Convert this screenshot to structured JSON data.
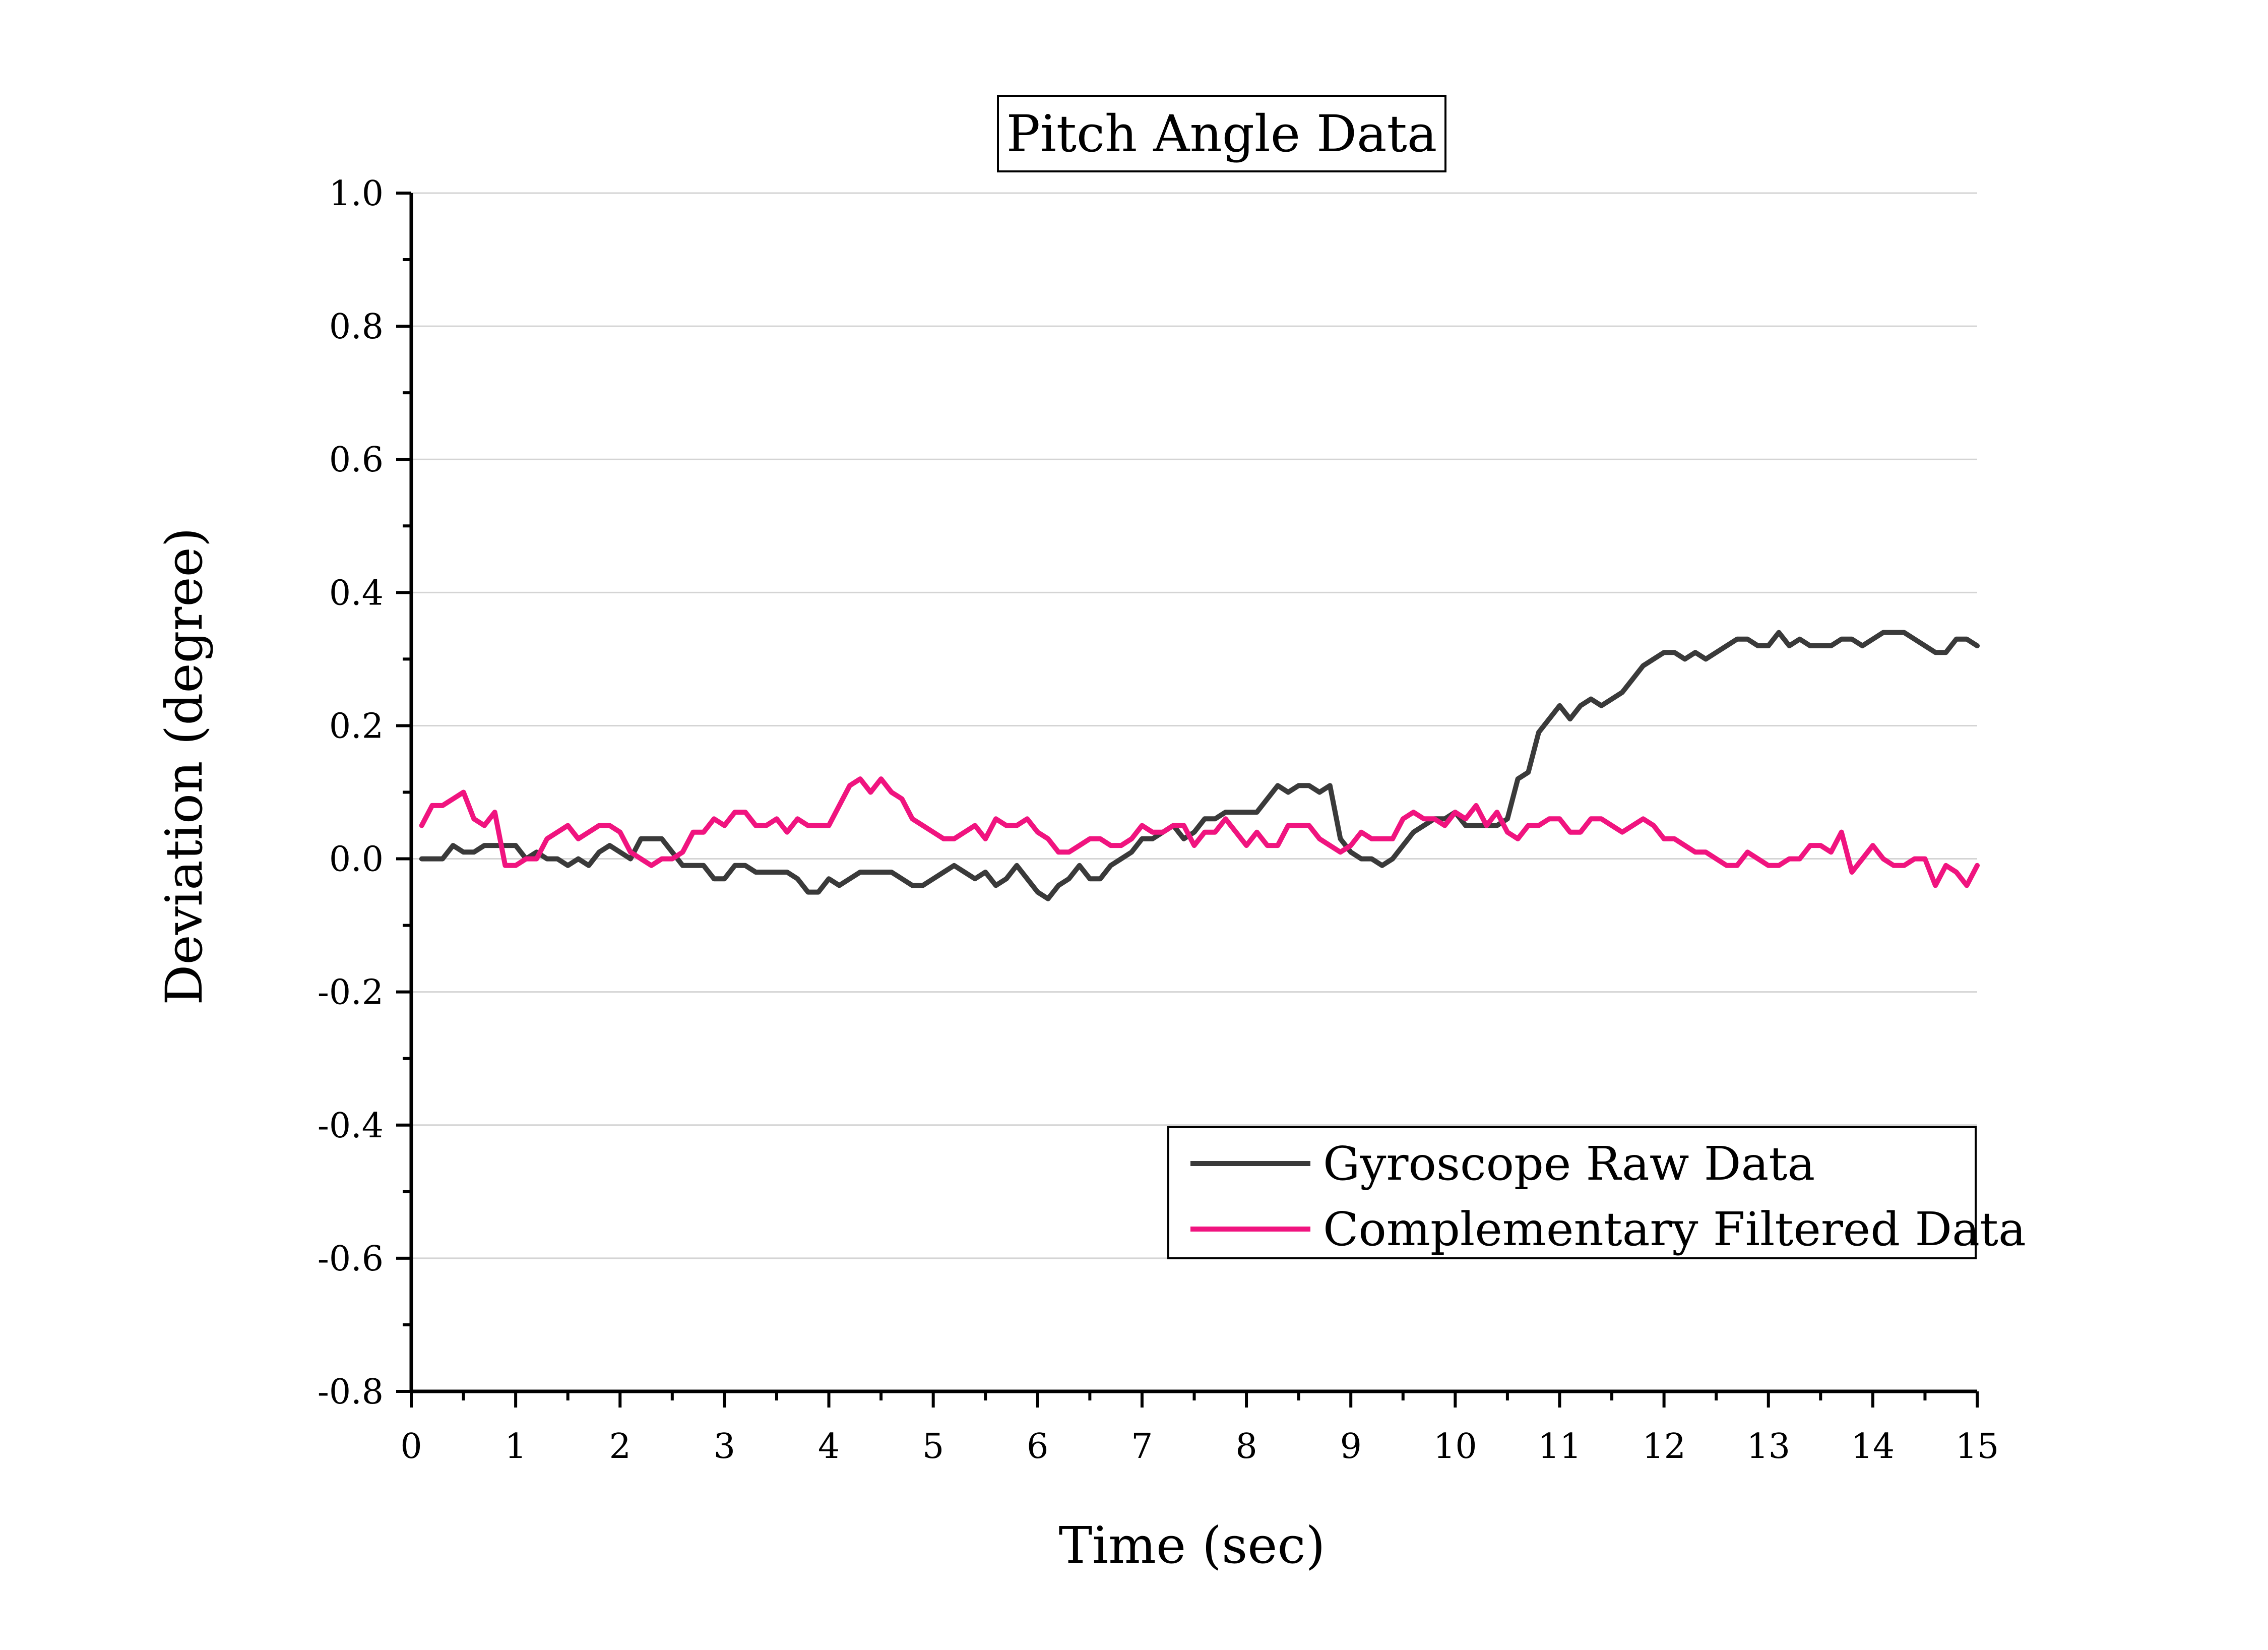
{
  "chart_data": {
    "type": "line",
    "title": "Pitch Angle Data",
    "xlabel": "Time (sec)",
    "ylabel": "Deviation (degree)",
    "xlim": [
      0,
      15
    ],
    "ylim": [
      -0.8,
      1.0
    ],
    "x_ticks": [
      0,
      1,
      2,
      3,
      4,
      5,
      6,
      7,
      8,
      9,
      10,
      11,
      12,
      13,
      14,
      15
    ],
    "x_tick_labels": [
      "0",
      "1",
      "2",
      "3",
      "4",
      "5",
      "6",
      "7",
      "8",
      "9",
      "10",
      "11",
      "12",
      "13",
      "14",
      "15"
    ],
    "y_ticks": [
      -0.8,
      -0.6,
      -0.4,
      -0.2,
      0.0,
      0.2,
      0.4,
      0.6,
      0.8,
      1.0
    ],
    "y_tick_labels": [
      "-0.8",
      "-0.6",
      "-0.4",
      "-0.2",
      "0.0",
      "0.2",
      "0.4",
      "0.6",
      "0.8",
      "1.0"
    ],
    "grid": true,
    "legend_position": "bottom-right",
    "series": [
      {
        "name": "Gyroscope Raw Data",
        "color": "#3a3a3a",
        "x": [
          0.1,
          0.2,
          0.3,
          0.4,
          0.5,
          0.6,
          0.7,
          0.8,
          0.9,
          1.0,
          1.1,
          1.2,
          1.3,
          1.4,
          1.5,
          1.6,
          1.7,
          1.8,
          1.9,
          2.0,
          2.1,
          2.2,
          2.3,
          2.4,
          2.5,
          2.6,
          2.7,
          2.8,
          2.9,
          3.0,
          3.1,
          3.2,
          3.3,
          3.4,
          3.5,
          3.6,
          3.7,
          3.8,
          3.9,
          4.0,
          4.1,
          4.2,
          4.3,
          4.4,
          4.5,
          4.6,
          4.7,
          4.8,
          4.9,
          5.0,
          5.1,
          5.2,
          5.3,
          5.4,
          5.5,
          5.6,
          5.7,
          5.8,
          5.9,
          6.0,
          6.1,
          6.2,
          6.3,
          6.4,
          6.5,
          6.6,
          6.7,
          6.8,
          6.9,
          7.0,
          7.1,
          7.2,
          7.3,
          7.4,
          7.5,
          7.6,
          7.7,
          7.8,
          7.9,
          8.0,
          8.1,
          8.2,
          8.3,
          8.4,
          8.5,
          8.6,
          8.7,
          8.8,
          8.9,
          9.0,
          9.1,
          9.2,
          9.3,
          9.4,
          9.5,
          9.6,
          9.7,
          9.8,
          9.9,
          10.0,
          10.1,
          10.2,
          10.3,
          10.4,
          10.5,
          10.6,
          10.7,
          10.8,
          10.9,
          11.0,
          11.1,
          11.2,
          11.3,
          11.4,
          11.5,
          11.6,
          11.7,
          11.8,
          11.9,
          12.0,
          12.1,
          12.2,
          12.3,
          12.4,
          12.5,
          12.6,
          12.7,
          12.8,
          12.9,
          13.0,
          13.1,
          13.2,
          13.3,
          13.4,
          13.5,
          13.6,
          13.7,
          13.8,
          13.9,
          14.0,
          14.1,
          14.2,
          14.3,
          14.4,
          14.5,
          14.6,
          14.7,
          14.8,
          14.9,
          15.0
        ],
        "values": [
          0.0,
          0.0,
          0.0,
          0.02,
          0.01,
          0.01,
          0.02,
          0.02,
          0.02,
          0.02,
          0.0,
          0.01,
          0.0,
          0.0,
          -0.01,
          0.0,
          -0.01,
          0.01,
          0.02,
          0.01,
          0.0,
          0.03,
          0.03,
          0.03,
          0.01,
          -0.01,
          -0.01,
          -0.01,
          -0.03,
          -0.03,
          -0.01,
          -0.01,
          -0.02,
          -0.02,
          -0.02,
          -0.02,
          -0.03,
          -0.05,
          -0.05,
          -0.03,
          -0.04,
          -0.03,
          -0.02,
          -0.02,
          -0.02,
          -0.02,
          -0.03,
          -0.04,
          -0.04,
          -0.03,
          -0.02,
          -0.01,
          -0.02,
          -0.03,
          -0.02,
          -0.04,
          -0.03,
          -0.01,
          -0.03,
          -0.05,
          -0.06,
          -0.04,
          -0.03,
          -0.01,
          -0.03,
          -0.03,
          -0.01,
          0.0,
          0.01,
          0.03,
          0.03,
          0.04,
          0.05,
          0.03,
          0.04,
          0.06,
          0.06,
          0.07,
          0.07,
          0.07,
          0.07,
          0.09,
          0.11,
          0.1,
          0.11,
          0.11,
          0.1,
          0.11,
          0.03,
          0.01,
          0.0,
          0.0,
          -0.01,
          0.0,
          0.02,
          0.04,
          0.05,
          0.06,
          0.06,
          0.07,
          0.05,
          0.05,
          0.05,
          0.05,
          0.06,
          0.12,
          0.13,
          0.19,
          0.21,
          0.23,
          0.21,
          0.23,
          0.24,
          0.23,
          0.24,
          0.25,
          0.27,
          0.29,
          0.3,
          0.31,
          0.31,
          0.3,
          0.31,
          0.3,
          0.31,
          0.32,
          0.33,
          0.33,
          0.32,
          0.32,
          0.34,
          0.32,
          0.33,
          0.32,
          0.32,
          0.32,
          0.33,
          0.33,
          0.32,
          0.33,
          0.34,
          0.34,
          0.34,
          0.33,
          0.32,
          0.31,
          0.31,
          0.33,
          0.33,
          0.32
        ]
      },
      {
        "name": "Complementary Filtered Data",
        "color": "#f0147f",
        "x": [
          0.1,
          0.2,
          0.3,
          0.4,
          0.5,
          0.6,
          0.7,
          0.8,
          0.9,
          1.0,
          1.1,
          1.2,
          1.3,
          1.4,
          1.5,
          1.6,
          1.7,
          1.8,
          1.9,
          2.0,
          2.1,
          2.2,
          2.3,
          2.4,
          2.5,
          2.6,
          2.7,
          2.8,
          2.9,
          3.0,
          3.1,
          3.2,
          3.3,
          3.4,
          3.5,
          3.6,
          3.7,
          3.8,
          3.9,
          4.0,
          4.1,
          4.2,
          4.3,
          4.4,
          4.5,
          4.6,
          4.7,
          4.8,
          4.9,
          5.0,
          5.1,
          5.2,
          5.3,
          5.4,
          5.5,
          5.6,
          5.7,
          5.8,
          5.9,
          6.0,
          6.1,
          6.2,
          6.3,
          6.4,
          6.5,
          6.6,
          6.7,
          6.8,
          6.9,
          7.0,
          7.1,
          7.2,
          7.3,
          7.4,
          7.5,
          7.6,
          7.7,
          7.8,
          7.9,
          8.0,
          8.1,
          8.2,
          8.3,
          8.4,
          8.5,
          8.6,
          8.7,
          8.8,
          8.9,
          9.0,
          9.1,
          9.2,
          9.3,
          9.4,
          9.5,
          9.6,
          9.7,
          9.8,
          9.9,
          10.0,
          10.1,
          10.2,
          10.3,
          10.4,
          10.5,
          10.6,
          10.7,
          10.8,
          10.9,
          11.0,
          11.1,
          11.2,
          11.3,
          11.4,
          11.5,
          11.6,
          11.7,
          11.8,
          11.9,
          12.0,
          12.1,
          12.2,
          12.3,
          12.4,
          12.5,
          12.6,
          12.7,
          12.8,
          12.9,
          13.0,
          13.1,
          13.2,
          13.3,
          13.4,
          13.5,
          13.6,
          13.7,
          13.8,
          13.9,
          14.0,
          14.1,
          14.2,
          14.3,
          14.4,
          14.5,
          14.6,
          14.7,
          14.8,
          14.9,
          15.0
        ],
        "values": [
          0.05,
          0.08,
          0.08,
          0.09,
          0.1,
          0.06,
          0.05,
          0.07,
          -0.01,
          -0.01,
          0.0,
          0.0,
          0.03,
          0.04,
          0.05,
          0.03,
          0.04,
          0.05,
          0.05,
          0.04,
          0.01,
          0.0,
          -0.01,
          0.0,
          0.0,
          0.01,
          0.04,
          0.04,
          0.06,
          0.05,
          0.07,
          0.07,
          0.05,
          0.05,
          0.06,
          0.04,
          0.06,
          0.05,
          0.05,
          0.05,
          0.08,
          0.11,
          0.12,
          0.1,
          0.12,
          0.1,
          0.09,
          0.06,
          0.05,
          0.04,
          0.03,
          0.03,
          0.04,
          0.05,
          0.03,
          0.06,
          0.05,
          0.05,
          0.06,
          0.04,
          0.03,
          0.01,
          0.01,
          0.02,
          0.03,
          0.03,
          0.02,
          0.02,
          0.03,
          0.05,
          0.04,
          0.04,
          0.05,
          0.05,
          0.02,
          0.04,
          0.04,
          0.06,
          0.04,
          0.02,
          0.04,
          0.02,
          0.02,
          0.05,
          0.05,
          0.05,
          0.03,
          0.02,
          0.01,
          0.02,
          0.04,
          0.03,
          0.03,
          0.03,
          0.06,
          0.07,
          0.06,
          0.06,
          0.05,
          0.07,
          0.06,
          0.08,
          0.05,
          0.07,
          0.04,
          0.03,
          0.05,
          0.05,
          0.06,
          0.06,
          0.04,
          0.04,
          0.06,
          0.06,
          0.05,
          0.04,
          0.05,
          0.06,
          0.05,
          0.03,
          0.03,
          0.02,
          0.01,
          0.01,
          0.0,
          -0.01,
          -0.01,
          0.01,
          0.0,
          -0.01,
          -0.01,
          0.0,
          0.0,
          0.02,
          0.02,
          0.01,
          0.04,
          -0.02,
          0.0,
          0.02,
          0.0,
          -0.01,
          -0.01,
          0.0,
          0.0,
          -0.04,
          -0.01,
          -0.02,
          -0.04,
          -0.01
        ]
      }
    ]
  }
}
